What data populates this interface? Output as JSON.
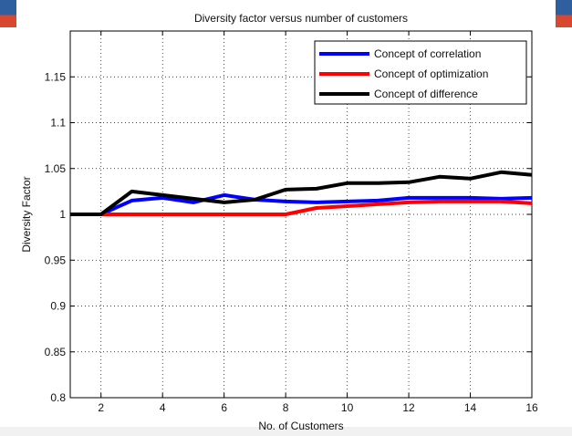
{
  "chart_data": {
    "type": "line",
    "title": "Diversity factor versus number of customers",
    "xlabel": "No. of Customers",
    "ylabel": "Diversity Factor",
    "xlim": [
      1,
      16
    ],
    "ylim": [
      0.8,
      1.2
    ],
    "xticks": [
      2,
      4,
      6,
      8,
      10,
      12,
      14,
      16
    ],
    "yticks": [
      0.8,
      0.85,
      0.9,
      0.95,
      1,
      1.05,
      1.1,
      1.15
    ],
    "grid": true,
    "legend_position": "top-right",
    "series": [
      {
        "name": "Concept of correlation",
        "color": "#0000ff",
        "x": [
          1,
          2,
          3,
          4,
          5,
          6,
          7,
          8,
          9,
          10,
          11,
          12,
          13,
          14,
          15,
          16
        ],
        "y": [
          1.0,
          1.0,
          1.015,
          1.018,
          1.013,
          1.021,
          1.016,
          1.014,
          1.013,
          1.014,
          1.015,
          1.018,
          1.018,
          1.018,
          1.017,
          1.018
        ]
      },
      {
        "name": "Concept of optimization",
        "color": "#ff0000",
        "x": [
          1,
          2,
          3,
          4,
          5,
          6,
          7,
          8,
          9,
          10,
          11,
          12,
          13,
          14,
          15,
          16
        ],
        "y": [
          1.0,
          1.0,
          1.0,
          1.0,
          1.0,
          1.0,
          1.0,
          1.0,
          1.007,
          1.009,
          1.011,
          1.013,
          1.014,
          1.014,
          1.014,
          1.012
        ]
      },
      {
        "name": "Concept of difference",
        "color": "#000000",
        "x": [
          1,
          2,
          3,
          4,
          5,
          6,
          7,
          8,
          9,
          10,
          11,
          12,
          13,
          14,
          15,
          16
        ],
        "y": [
          1.0,
          1.0,
          1.025,
          1.021,
          1.017,
          1.013,
          1.016,
          1.027,
          1.028,
          1.034,
          1.034,
          1.035,
          1.041,
          1.039,
          1.046,
          1.043
        ]
      }
    ]
  }
}
